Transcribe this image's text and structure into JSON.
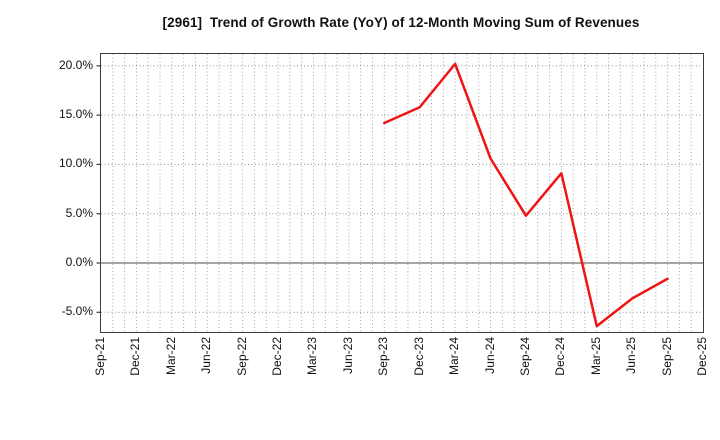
{
  "window": {
    "background": "#ffffff"
  },
  "chart_data": {
    "type": "line",
    "title": "[2961]  Trend of Growth Rate (YoY) of 12-Month Moving Sum of Revenues",
    "xlabel": "",
    "ylabel": "",
    "unit": "%",
    "categories": [
      "Sep-21",
      "Dec-21",
      "Mar-22",
      "Jun-22",
      "Sep-22",
      "Dec-22",
      "Mar-23",
      "Jun-23",
      "Sep-23",
      "Dec-23",
      "Mar-24",
      "Jun-24",
      "Sep-24",
      "Dec-24",
      "Mar-25",
      "Jun-25",
      "Sep-25",
      "Dec-25"
    ],
    "series": [
      {
        "name": "Growth Rate (YoY) of 12-Month Moving Sum of Revenues",
        "color": "#ee1515",
        "values": [
          null,
          null,
          null,
          null,
          null,
          null,
          null,
          null,
          14.2,
          15.8,
          20.2,
          10.6,
          4.8,
          9.1,
          -6.4,
          -3.6,
          -1.6,
          null
        ]
      }
    ],
    "y_axis": {
      "tick_values": [
        20,
        15,
        10,
        5,
        0,
        -5
      ],
      "tick_labels": [
        "20.0%",
        "15.0%",
        "10.0%",
        "5.0%",
        "0.0%",
        "-5.0%"
      ]
    },
    "ylim": [
      -7.0,
      21.2
    ],
    "grid": "monthly vertical dotted, 5% horizontal dotted, solid zero line",
    "legend": "none",
    "colors": {
      "line": "#ee1515",
      "grid_vertical": "#a8a8a8",
      "grid_horizontal": "#8f8f8f",
      "zero_line": "#6e6e6e",
      "border": "#3c3c3c",
      "text": "#111111",
      "background": "#ffffff"
    }
  }
}
